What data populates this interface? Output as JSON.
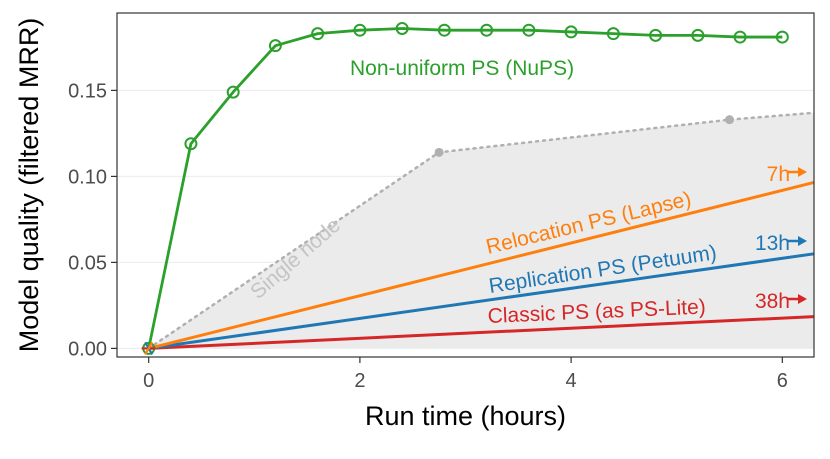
{
  "chart_data": {
    "type": "line",
    "xlabel": "Run time (hours)",
    "ylabel": "Model quality (filtered MRR)",
    "xlim": [
      -0.3,
      6.3
    ],
    "ylim": [
      -0.005,
      0.195
    ],
    "xticks": [
      0,
      2,
      4,
      6
    ],
    "yticks": [
      0.0,
      0.05,
      0.1,
      0.15
    ],
    "xtick_labels": [
      "0",
      "2",
      "4",
      "6"
    ],
    "ytick_labels": [
      "0.00",
      "0.05",
      "0.10",
      "0.15"
    ],
    "grid": "horizontal",
    "series": [
      {
        "name": "Non-uniform PS (NuPS)",
        "color": "#2ca02c",
        "style": "solid",
        "marker": "open-circle",
        "x": [
          0,
          0.4,
          0.8,
          1.2,
          1.6,
          2.0,
          2.4,
          2.8,
          3.2,
          3.6,
          4.0,
          4.4,
          4.8,
          5.2,
          5.6,
          6.0
        ],
        "y": [
          0.0,
          0.119,
          0.149,
          0.176,
          0.183,
          0.185,
          0.186,
          0.185,
          0.185,
          0.185,
          0.184,
          0.183,
          0.182,
          0.182,
          0.181,
          0.181
        ]
      },
      {
        "name": "Relocation PS (Lapse)",
        "color": "#ff7f0e",
        "style": "solid",
        "x": [
          0,
          6.3
        ],
        "y": [
          0.0,
          0.0965
        ],
        "end_time": "7h"
      },
      {
        "name": "Replication PS (Petuum)",
        "color": "#1f77b4",
        "style": "solid",
        "x": [
          0,
          6.3
        ],
        "y": [
          0.0,
          0.055
        ],
        "end_time": "13h"
      },
      {
        "name": "Classic PS (as PS-Lite)",
        "color": "#d62728",
        "style": "solid",
        "x": [
          0,
          6.3
        ],
        "y": [
          0.0,
          0.0185
        ],
        "end_time": "38h"
      },
      {
        "name": "Single node",
        "color": "#b0b0b0",
        "style": "dotted",
        "x": [
          0,
          2.75,
          5.5,
          6.3
        ],
        "y": [
          0.0,
          0.114,
          0.133,
          0.137
        ],
        "marker_x": [
          2.75,
          5.5
        ],
        "marker_y": [
          0.114,
          0.133
        ]
      }
    ]
  }
}
